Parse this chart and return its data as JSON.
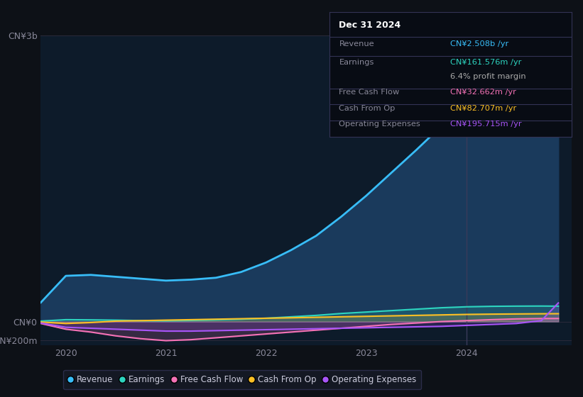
{
  "background_color": "#0d1117",
  "plot_bg_color": "#0d1b2a",
  "ylabel_top": "CN¥3b",
  "ylabel_zero": "CN¥0",
  "ylabel_neg": "-CN¥200m",
  "years": [
    2019.75,
    2020.0,
    2020.25,
    2020.5,
    2020.75,
    2021.0,
    2021.25,
    2021.5,
    2021.75,
    2022.0,
    2022.25,
    2022.5,
    2022.75,
    2023.0,
    2023.25,
    2023.5,
    2023.75,
    2024.0,
    2024.25,
    2024.5,
    2024.75,
    2024.92
  ],
  "revenue": [
    200,
    480,
    490,
    470,
    450,
    430,
    440,
    460,
    520,
    620,
    750,
    900,
    1100,
    1320,
    1560,
    1800,
    2050,
    2200,
    2320,
    2420,
    2500,
    2508
  ],
  "earnings": [
    5,
    20,
    18,
    15,
    10,
    8,
    12,
    18,
    25,
    35,
    50,
    65,
    85,
    100,
    115,
    130,
    145,
    155,
    160,
    162,
    163,
    161.576
  ],
  "free_cash_flow": [
    -20,
    -80,
    -110,
    -150,
    -180,
    -200,
    -190,
    -170,
    -150,
    -130,
    -110,
    -90,
    -70,
    -50,
    -30,
    -15,
    0,
    10,
    20,
    28,
    32,
    32.662
  ],
  "cash_from_op": [
    -5,
    -20,
    -10,
    5,
    10,
    15,
    20,
    25,
    30,
    35,
    40,
    45,
    50,
    55,
    60,
    65,
    70,
    75,
    78,
    80,
    82,
    82.707
  ],
  "operating_expenses": [
    -15,
    -60,
    -70,
    -80,
    -90,
    -100,
    -100,
    -95,
    -90,
    -85,
    -80,
    -75,
    -70,
    -65,
    -60,
    -55,
    -50,
    -40,
    -30,
    -20,
    10,
    195.715
  ],
  "xlim": [
    2019.75,
    2025.05
  ],
  "ylim_min": -250,
  "ylim_max": 3000,
  "divider_x": 2024.0,
  "colors": {
    "revenue": "#38bdf8",
    "revenue_fill": "#1a3a5c",
    "earnings": "#2dd4bf",
    "free_cash_flow": "#f472b6",
    "cash_from_op": "#fbbf24",
    "operating_expenses": "#a855f7"
  },
  "info_box": {
    "title": "Dec 31 2024",
    "rows": [
      {
        "label": "Revenue",
        "value": "CN¥2.508b /yr",
        "value_color": "#38bdf8",
        "has_sep": true
      },
      {
        "label": "Earnings",
        "value": "CN¥161.576m /yr",
        "value_color": "#2dd4bf",
        "has_sep": false
      },
      {
        "label": "",
        "value": "6.4% profit margin",
        "value_color": "#aaaaaa",
        "has_sep": true
      },
      {
        "label": "Free Cash Flow",
        "value": "CN¥32.662m /yr",
        "value_color": "#f472b6",
        "has_sep": true
      },
      {
        "label": "Cash From Op",
        "value": "CN¥82.707m /yr",
        "value_color": "#fbbf24",
        "has_sep": true
      },
      {
        "label": "Operating Expenses",
        "value": "CN¥195.715m /yr",
        "value_color": "#a855f7",
        "has_sep": false
      }
    ]
  },
  "legend": [
    {
      "label": "Revenue",
      "color": "#38bdf8"
    },
    {
      "label": "Earnings",
      "color": "#2dd4bf"
    },
    {
      "label": "Free Cash Flow",
      "color": "#f472b6"
    },
    {
      "label": "Cash From Op",
      "color": "#fbbf24"
    },
    {
      "label": "Operating Expenses",
      "color": "#a855f7"
    }
  ]
}
